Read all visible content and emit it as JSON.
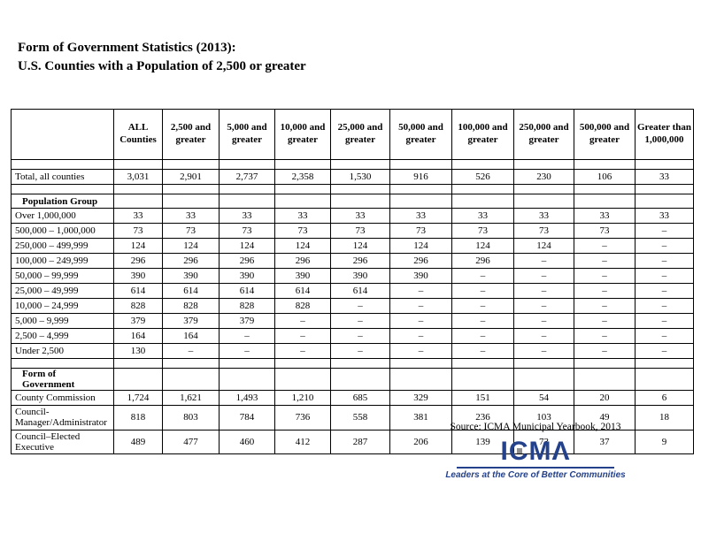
{
  "title": {
    "line1": "Form of Government Statistics (2013):",
    "line2": "U.S. Counties with a Population of 2,500 or greater"
  },
  "table": {
    "columns": [
      "",
      "ALL Counties",
      "2,500 and greater",
      "5,000 and greater",
      "10,000 and greater",
      "25,000 and greater",
      "50,000 and greater",
      "100,000 and greater",
      "250,000 and greater",
      "500,000 and greater",
      "Greater than 1,000,000"
    ],
    "rows": [
      {
        "type": "spacer"
      },
      {
        "type": "data",
        "label": "Total, all counties",
        "values": [
          "3,031",
          "2,901",
          "2,737",
          "2,358",
          "1,530",
          "916",
          "526",
          "230",
          "106",
          "33"
        ]
      },
      {
        "type": "spacer"
      },
      {
        "type": "section",
        "label": "Population Group"
      },
      {
        "type": "data",
        "label": "Over 1,000,000",
        "values": [
          "33",
          "33",
          "33",
          "33",
          "33",
          "33",
          "33",
          "33",
          "33",
          "33"
        ]
      },
      {
        "type": "data",
        "label": "500,000 – 1,000,000",
        "values": [
          "73",
          "73",
          "73",
          "73",
          "73",
          "73",
          "73",
          "73",
          "73",
          "–"
        ]
      },
      {
        "type": "data",
        "label": "250,000 – 499,999",
        "values": [
          "124",
          "124",
          "124",
          "124",
          "124",
          "124",
          "124",
          "124",
          "–",
          "–"
        ]
      },
      {
        "type": "data",
        "label": "100,000 – 249,999",
        "values": [
          "296",
          "296",
          "296",
          "296",
          "296",
          "296",
          "296",
          "–",
          "–",
          "–"
        ]
      },
      {
        "type": "data",
        "label": "50,000 – 99,999",
        "values": [
          "390",
          "390",
          "390",
          "390",
          "390",
          "390",
          "–",
          "–",
          "–",
          "–"
        ]
      },
      {
        "type": "data",
        "label": "25,000 – 49,999",
        "values": [
          "614",
          "614",
          "614",
          "614",
          "614",
          "–",
          "–",
          "–",
          "–",
          "–"
        ]
      },
      {
        "type": "data",
        "label": "10,000 – 24,999",
        "values": [
          "828",
          "828",
          "828",
          "828",
          "–",
          "–",
          "–",
          "–",
          "–",
          "–"
        ]
      },
      {
        "type": "data",
        "label": "5,000 –  9,999",
        "values": [
          "379",
          "379",
          "379",
          "–",
          "–",
          "–",
          "–",
          "–",
          "–",
          "–"
        ]
      },
      {
        "type": "data",
        "label": "2,500 – 4,999",
        "values": [
          "164",
          "164",
          "–",
          "–",
          "–",
          "–",
          "–",
          "–",
          "–",
          "–"
        ]
      },
      {
        "type": "data",
        "label": "Under 2,500",
        "values": [
          "130",
          "–",
          "–",
          "–",
          "–",
          "–",
          "–",
          "–",
          "–",
          "–"
        ]
      },
      {
        "type": "spacer"
      },
      {
        "type": "section",
        "label": "Form of Government"
      },
      {
        "type": "data",
        "label": "County Commission",
        "values": [
          "1,724",
          "1,621",
          "1,493",
          "1,210",
          "685",
          "329",
          "151",
          "54",
          "20",
          "6"
        ]
      },
      {
        "type": "data",
        "label": "Council-Manager/Administrator",
        "values": [
          "818",
          "803",
          "784",
          "736",
          "558",
          "381",
          "236",
          "103",
          "49",
          "18"
        ]
      },
      {
        "type": "data",
        "label": "Council–Elected Executive",
        "values": [
          "489",
          "477",
          "460",
          "412",
          "287",
          "206",
          "139",
          "73",
          "37",
          "9"
        ]
      }
    ]
  },
  "source": "Source: ICMA Municipal Yearbook, 2013",
  "logo": {
    "text": "ICMA",
    "tagline": "Leaders at the Core of Better Communities",
    "color": "#24418b",
    "square_color": "#8e8e8e"
  }
}
